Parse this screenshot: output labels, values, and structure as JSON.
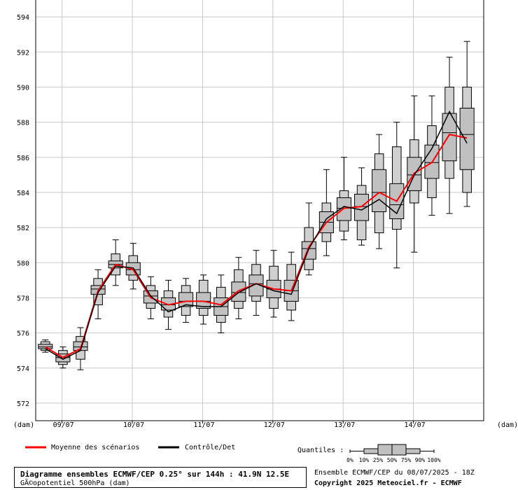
{
  "chart_data": {
    "type": "box",
    "title": "Diagramme ensembles ECMWF/CEP 0.25° sur 144h : 41.9N 12.5E",
    "subtitle": "GÃ©opotentiel 500hPa (dam)",
    "ylabel_left": "(dam)",
    "ylabel_right": "(dam)",
    "ylim": [
      571,
      595
    ],
    "yticks": [
      572,
      574,
      576,
      578,
      580,
      582,
      584,
      586,
      588,
      590,
      592,
      594
    ],
    "grid": true,
    "x_tick_labels": [
      "09/07",
      "10/07",
      "11/07",
      "12/07",
      "13/07",
      "14/07"
    ],
    "x_tick_steps": [
      1.5,
      5.5,
      9.5,
      13.5,
      17.5,
      21.5
    ],
    "legend": {
      "mean_label": "Moyenne des scénarios",
      "control_label": "Contrôle/Det",
      "quantiles_label": "Quantiles :",
      "quantile_ticks": [
        "0%",
        "10%",
        "25%",
        "50%",
        "75%",
        "90%",
        "100%"
      ]
    },
    "colors": {
      "mean": "#ff0000",
      "control": "#000000",
      "box": "#c0c0c0",
      "grid": "#c8c8c8"
    },
    "series": [
      {
        "name": "Moyenne des scénarios",
        "values": [
          575.2,
          574.6,
          575.1,
          578.4,
          579.9,
          579.6,
          578.0,
          577.6,
          577.8,
          577.8,
          577.6,
          578.4,
          578.8,
          578.5,
          578.4,
          580.9,
          582.3,
          583.1,
          583.2,
          584.0,
          583.5,
          585.1,
          585.7,
          587.3,
          587.1
        ]
      },
      {
        "name": "Contrôle/Det",
        "values": [
          575.1,
          574.5,
          575.0,
          578.3,
          579.8,
          579.7,
          578.1,
          577.2,
          577.6,
          577.5,
          577.5,
          578.3,
          578.8,
          578.4,
          578.2,
          580.8,
          582.5,
          583.2,
          583.0,
          583.6,
          582.8,
          585.0,
          586.5,
          588.6,
          586.8
        ]
      }
    ],
    "boxes": [
      {
        "q0": 574.9,
        "q10": 575.0,
        "q25": 575.1,
        "q50": 575.2,
        "q75": 575.35,
        "q90": 575.5,
        "q100": 575.6
      },
      {
        "q0": 574.0,
        "q10": 574.2,
        "q25": 574.35,
        "q50": 574.6,
        "q75": 574.8,
        "q90": 575.0,
        "q100": 575.2
      },
      {
        "q0": 573.9,
        "q10": 574.5,
        "q25": 575.0,
        "q50": 575.2,
        "q75": 575.5,
        "q90": 575.8,
        "q100": 576.3
      },
      {
        "q0": 576.8,
        "q10": 577.6,
        "q25": 578.2,
        "q50": 578.5,
        "q75": 578.7,
        "q90": 579.1,
        "q100": 579.6
      },
      {
        "q0": 578.7,
        "q10": 579.3,
        "q25": 579.7,
        "q50": 579.9,
        "q75": 580.1,
        "q90": 580.5,
        "q100": 581.3
      },
      {
        "q0": 578.5,
        "q10": 579.0,
        "q25": 579.3,
        "q50": 579.6,
        "q75": 580.0,
        "q90": 580.4,
        "q100": 581.1
      },
      {
        "q0": 576.8,
        "q10": 577.4,
        "q25": 577.7,
        "q50": 578.1,
        "q75": 578.4,
        "q90": 578.7,
        "q100": 579.2
      },
      {
        "q0": 576.2,
        "q10": 576.9,
        "q25": 577.3,
        "q50": 577.6,
        "q75": 578.0,
        "q90": 578.4,
        "q100": 579.0
      },
      {
        "q0": 576.6,
        "q10": 577.0,
        "q25": 577.5,
        "q50": 577.8,
        "q75": 578.3,
        "q90": 578.7,
        "q100": 579.1
      },
      {
        "q0": 576.5,
        "q10": 577.0,
        "q25": 577.4,
        "q50": 577.8,
        "q75": 578.3,
        "q90": 579.0,
        "q100": 579.3
      },
      {
        "q0": 576.0,
        "q10": 576.6,
        "q25": 577.0,
        "q50": 577.5,
        "q75": 578.0,
        "q90": 578.6,
        "q100": 579.3
      },
      {
        "q0": 576.8,
        "q10": 577.4,
        "q25": 577.8,
        "q50": 578.3,
        "q75": 578.9,
        "q90": 579.6,
        "q100": 580.3
      },
      {
        "q0": 577.0,
        "q10": 577.8,
        "q25": 578.1,
        "q50": 578.8,
        "q75": 579.3,
        "q90": 579.9,
        "q100": 580.7
      },
      {
        "q0": 576.9,
        "q10": 577.4,
        "q25": 578.0,
        "q50": 578.5,
        "q75": 579.0,
        "q90": 579.8,
        "q100": 580.7
      },
      {
        "q0": 576.7,
        "q10": 577.3,
        "q25": 577.8,
        "q50": 578.4,
        "q75": 579.0,
        "q90": 579.9,
        "q100": 580.6
      },
      {
        "q0": 579.3,
        "q10": 579.6,
        "q25": 580.2,
        "q50": 580.8,
        "q75": 581.2,
        "q90": 582.0,
        "q100": 583.4
      },
      {
        "q0": 580.4,
        "q10": 581.2,
        "q25": 581.7,
        "q50": 582.3,
        "q75": 582.9,
        "q90": 583.4,
        "q100": 585.3
      },
      {
        "q0": 581.3,
        "q10": 581.8,
        "q25": 582.4,
        "q50": 583.1,
        "q75": 583.7,
        "q90": 584.1,
        "q100": 586.0
      },
      {
        "q0": 581.0,
        "q10": 581.3,
        "q25": 582.4,
        "q50": 583.2,
        "q75": 583.9,
        "q90": 584.4,
        "q100": 585.4
      },
      {
        "q0": 580.8,
        "q10": 581.7,
        "q25": 582.9,
        "q50": 584.0,
        "q75": 585.3,
        "q90": 586.2,
        "q100": 587.3
      },
      {
        "q0": 579.7,
        "q10": 581.9,
        "q25": 582.5,
        "q50": 583.3,
        "q75": 584.5,
        "q90": 586.6,
        "q100": 588.0
      },
      {
        "q0": 580.6,
        "q10": 583.4,
        "q25": 584.1,
        "q50": 585.0,
        "q75": 586.0,
        "q90": 587.0,
        "q100": 589.5
      },
      {
        "q0": 582.7,
        "q10": 583.7,
        "q25": 584.8,
        "q50": 585.7,
        "q75": 586.7,
        "q90": 587.8,
        "q100": 589.5
      },
      {
        "q0": 582.8,
        "q10": 584.8,
        "q25": 585.8,
        "q50": 587.4,
        "q75": 588.5,
        "q90": 590.0,
        "q100": 591.7
      },
      {
        "q0": 583.2,
        "q10": 584.0,
        "q25": 585.3,
        "q50": 587.3,
        "q75": 588.8,
        "q90": 590.0,
        "q100": 592.6
      }
    ]
  },
  "footer": {
    "title_main": "Diagramme ensembles ECMWF/CEP 0.25° sur 144h : 41.9N 12.5E",
    "title_sub": "GÃ©opotentiel 500hPa (dam)",
    "run_info": "Ensemble ECMWF/CEP du 08/07/2025 - 18Z",
    "copyright": "Copyright 2025 Meteociel.fr - ECMWF"
  }
}
